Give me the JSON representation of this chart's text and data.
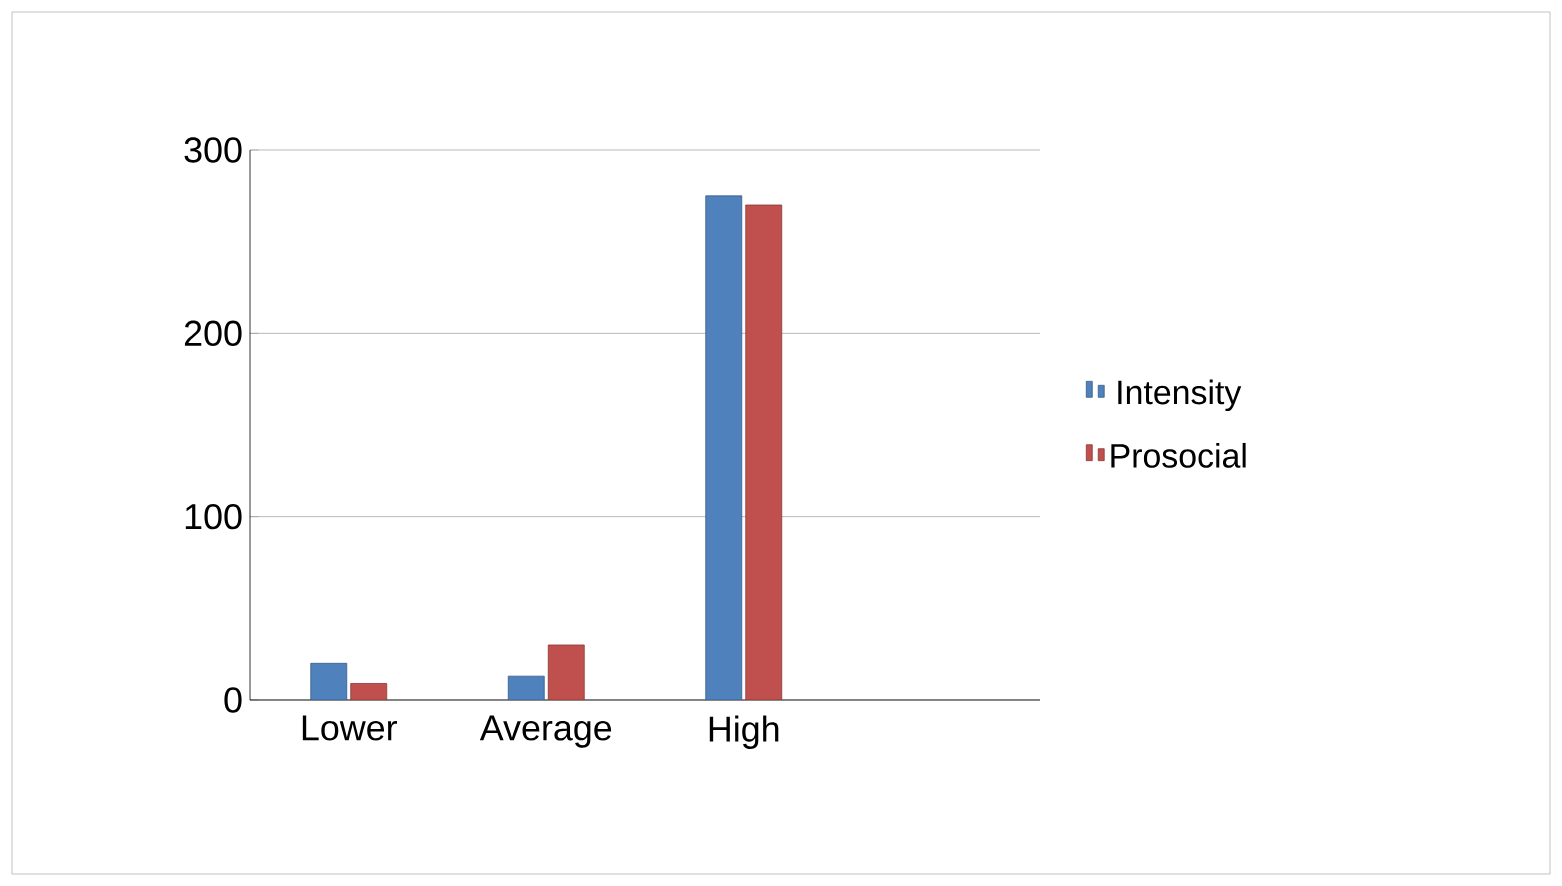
{
  "chart_data": {
    "type": "bar",
    "categories": [
      "Lower",
      "Average",
      "High",
      null
    ],
    "series": [
      {
        "name": "Intensity",
        "color": "#4f81bd",
        "values": [
          20,
          13,
          275,
          null
        ]
      },
      {
        "name": "Prosocial",
        "color": "#c0504d",
        "values": [
          9,
          30,
          270,
          null
        ]
      }
    ],
    "ylim": [
      0,
      300
    ],
    "yticks": [
      0,
      100,
      200,
      300
    ],
    "grid": "y",
    "legend": "right"
  }
}
